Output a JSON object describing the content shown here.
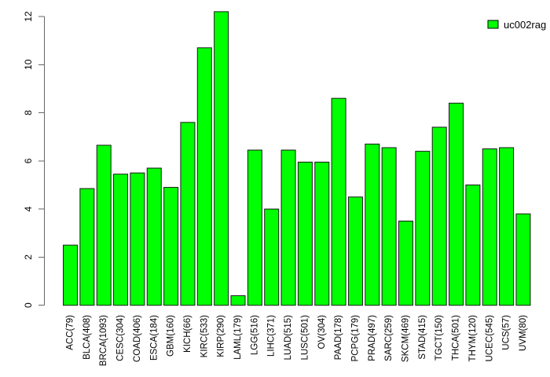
{
  "chart_data": {
    "type": "bar",
    "title": "",
    "xlabel": "",
    "ylabel": "",
    "grid": false,
    "legend": {
      "label": "uc002rag",
      "position": "topright",
      "swatch_color": "#00ff00",
      "swatch_border": "#000000"
    },
    "bar_fill": "#00ff00",
    "bar_border": "#1a1a1a",
    "axis_color": "#666666",
    "ylim": [
      0,
      12
    ],
    "yticks": [
      0,
      2,
      4,
      6,
      8,
      10,
      12
    ],
    "categories": [
      "ACC(79)",
      "BLCA(408)",
      "BRCA(1093)",
      "CESC(304)",
      "COAD(406)",
      "ESCA(184)",
      "GBM(160)",
      "KICH(66)",
      "KIRC(533)",
      "KIRP(290)",
      "LAML(179)",
      "LGG(516)",
      "LIHC(371)",
      "LUAD(515)",
      "LUSC(501)",
      "OV(304)",
      "PAAD(178)",
      "PCPG(179)",
      "PRAD(497)",
      "SARC(259)",
      "SKCM(469)",
      "STAD(415)",
      "TGCT(150)",
      "THCA(501)",
      "THYM(120)",
      "UCEC(545)",
      "UCS(57)",
      "UVM(80)"
    ],
    "values": [
      2.5,
      4.85,
      6.65,
      5.45,
      5.5,
      5.7,
      4.9,
      7.6,
      10.7,
      12.2,
      0.4,
      6.45,
      4.0,
      6.45,
      5.95,
      5.95,
      8.6,
      4.5,
      6.7,
      6.55,
      3.5,
      6.4,
      7.4,
      8.4,
      5.0,
      6.5,
      6.55,
      3.8
    ]
  }
}
